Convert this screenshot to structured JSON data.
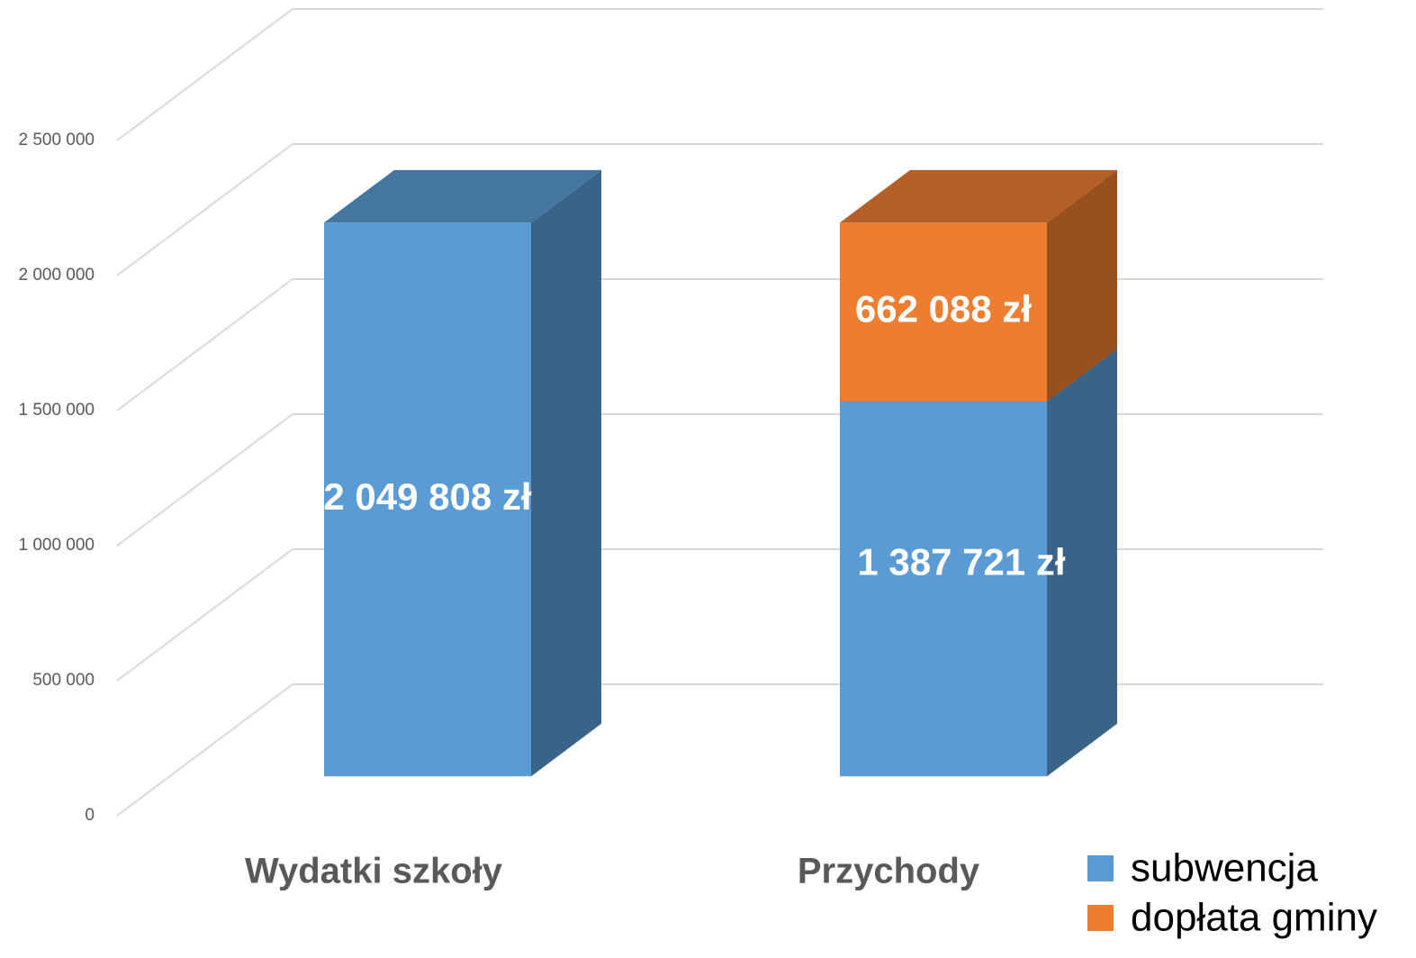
{
  "chart_data": {
    "type": "bar3d_stacked",
    "categories": [
      "Wydatki szkoły",
      "Przychody"
    ],
    "series": [
      {
        "name": "subwencja",
        "color": "#5b9bd5",
        "values": [
          2049808,
          1387721
        ],
        "value_labels": [
          "2 049 808 zł",
          "1 387 721 zł"
        ]
      },
      {
        "name": "dopłata gminy",
        "color": "#ed7d31",
        "values": [
          null,
          662088
        ],
        "value_labels": [
          null,
          "662 088 zł"
        ]
      }
    ],
    "ylim": [
      0,
      2500000
    ],
    "yticks": [
      0,
      {
        "value": 500000,
        "label": "500 000"
      },
      {
        "value": 1000000,
        "label": "1 000 000"
      },
      {
        "value": 1500000,
        "label": "1 500 000"
      },
      {
        "value": 2000000,
        "label": "2 000 000"
      },
      {
        "value": 2500000,
        "label": "2 500 000"
      }
    ],
    "grid": true,
    "legend": "bottom-right"
  }
}
